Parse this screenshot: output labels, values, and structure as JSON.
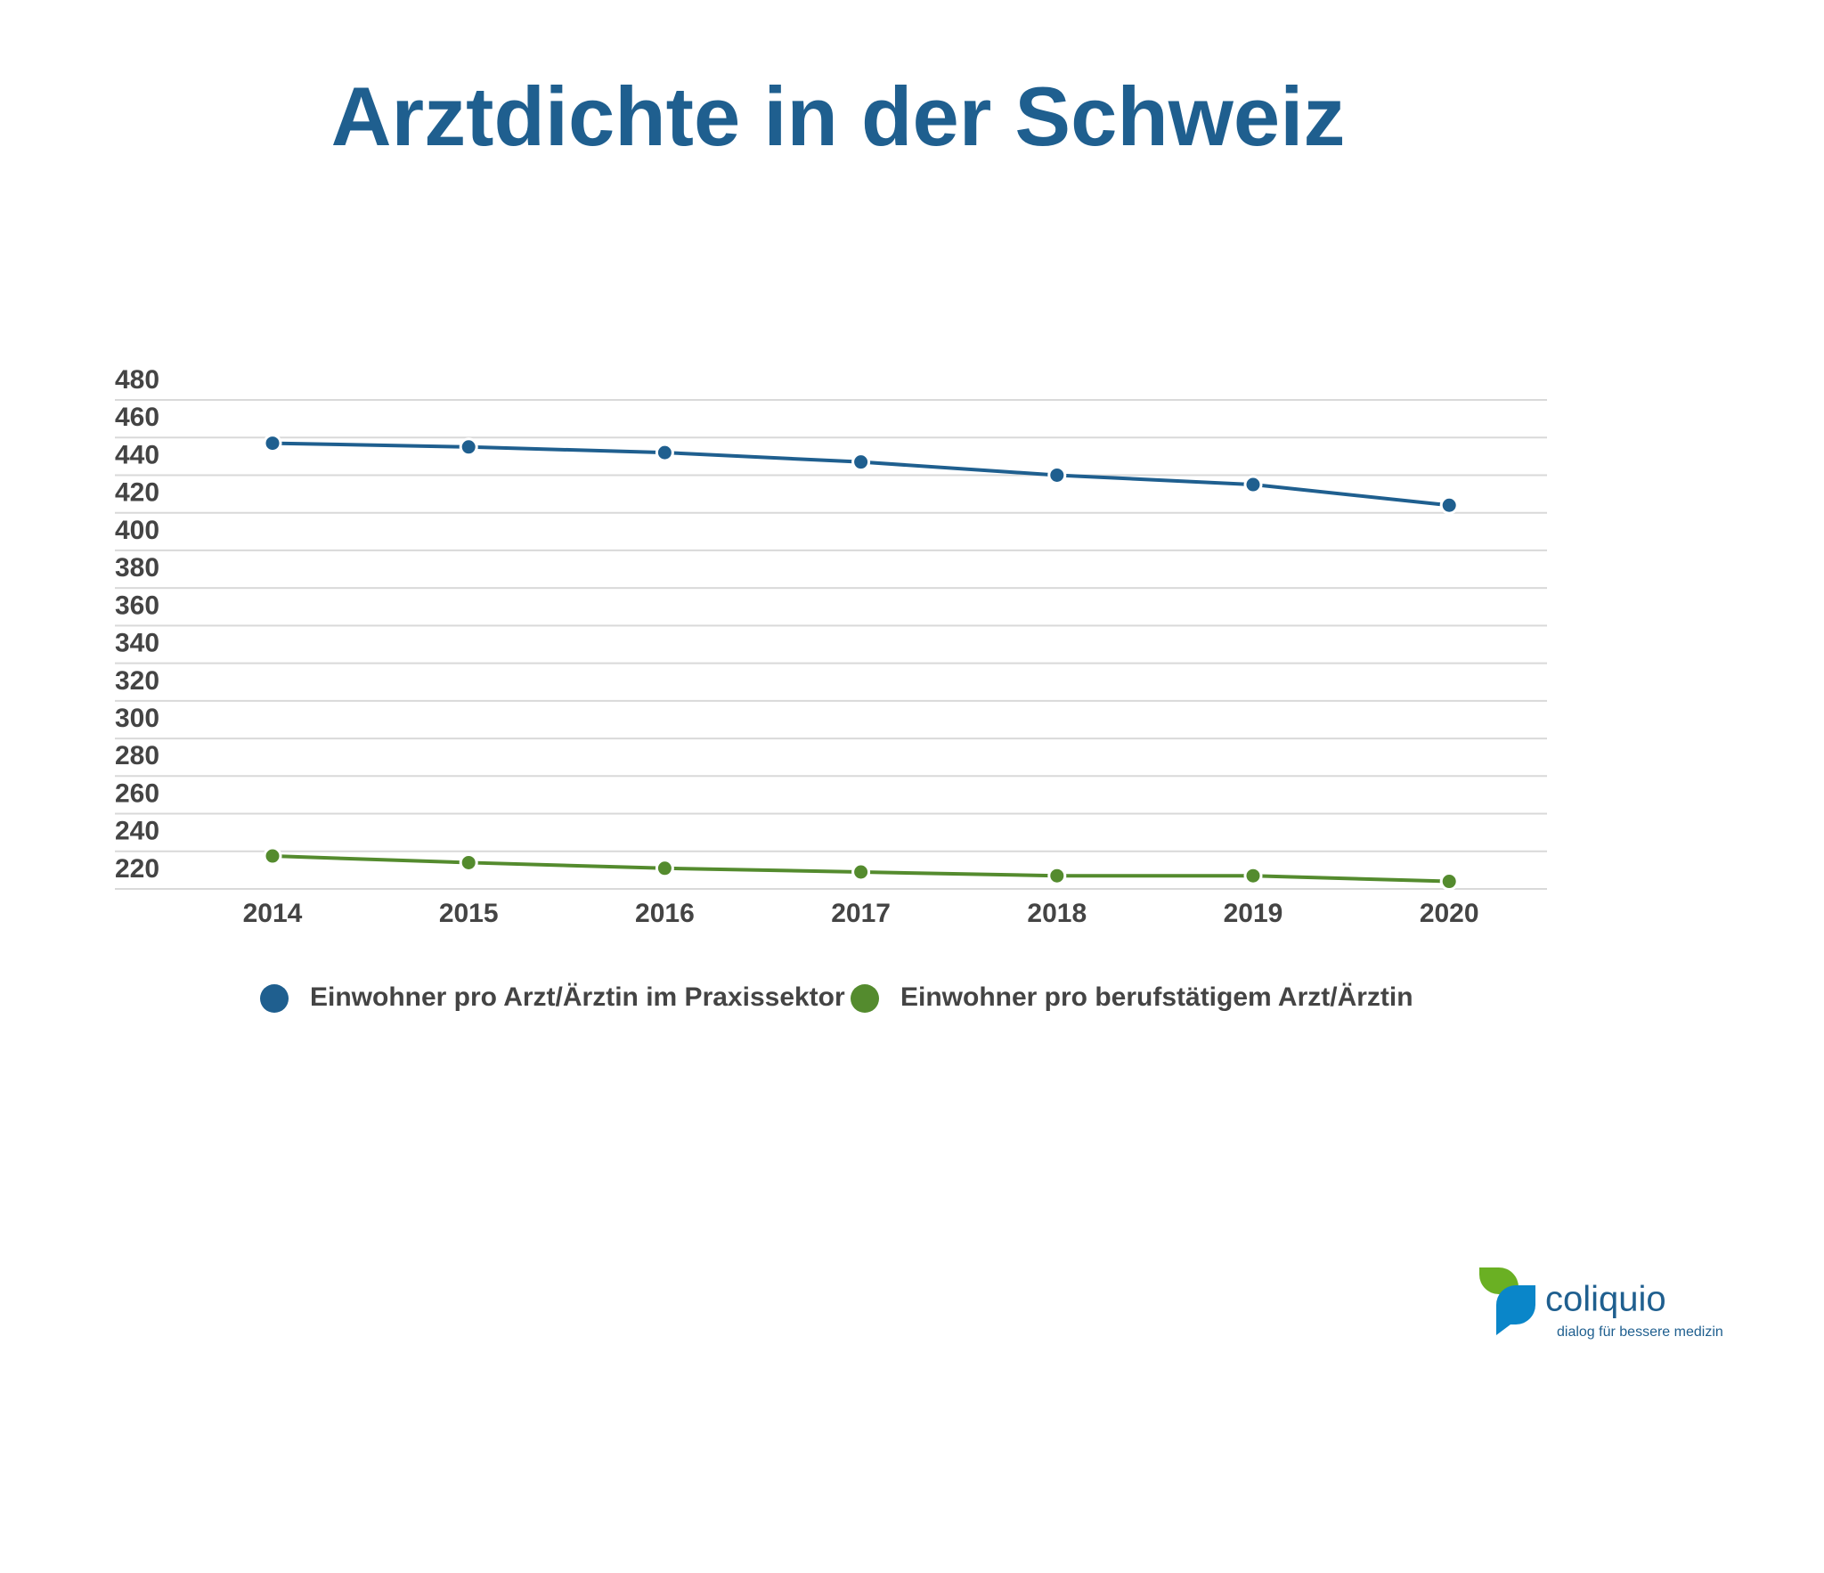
{
  "chart_data": {
    "type": "line",
    "title": "Arztdichte in der Schweiz",
    "categories": [
      "2014",
      "2015",
      "2016",
      "2017",
      "2018",
      "2019",
      "2020"
    ],
    "series": [
      {
        "name": "Einwohner pro Arzt/Ärztin im Praxissektor",
        "color": "#1f5f8f",
        "values": [
          457,
          455,
          452,
          447,
          440,
          435,
          424
        ]
      },
      {
        "name": "Einwohner pro berufstätigem Arzt/Ärztin",
        "color": "#548b2e",
        "values": [
          237.5,
          234,
          231,
          229,
          227,
          227,
          224
        ]
      }
    ],
    "ylim": [
      220,
      480
    ],
    "yticks": [
      480,
      460,
      440,
      420,
      400,
      380,
      360,
      340,
      320,
      300,
      280,
      260,
      240,
      220
    ],
    "grid": true
  },
  "logo": {
    "name": "coliquio",
    "tagline": "dialog für bessere medizin"
  }
}
